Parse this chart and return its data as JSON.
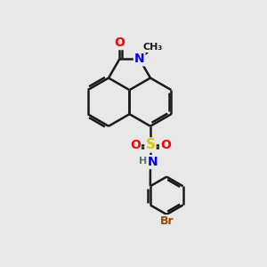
{
  "bg_color": "#e8e8e8",
  "bond_color": "#1a1a1a",
  "bond_width": 1.8,
  "atom_colors": {
    "O": "#ff0000",
    "N": "#0000ee",
    "S": "#cccc00",
    "Br": "#994400",
    "H": "#557777",
    "C": "#1a1a1a"
  },
  "font_size": 9,
  "fig_size": [
    3.0,
    3.0
  ],
  "dpi": 100
}
